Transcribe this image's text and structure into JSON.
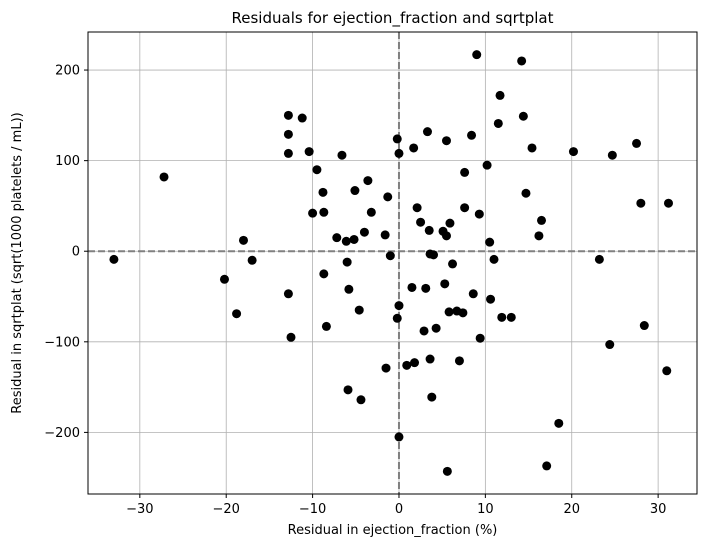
{
  "chart_data": {
    "type": "scatter",
    "title": "Residuals for ejection_fraction and sqrtplat",
    "xlabel": "Residual in ejection_fraction (%)",
    "ylabel": "Residual in sqrtplat (sqrt(1000 platelets / mL))",
    "xlim": [
      -36,
      34.5
    ],
    "ylim": [
      -268,
      242
    ],
    "xticks": [
      -30,
      -20,
      -10,
      0,
      10,
      20,
      30
    ],
    "xtick_labels": [
      "−30",
      "−20",
      "−10",
      "0",
      "10",
      "20",
      "30"
    ],
    "yticks": [
      -200,
      -100,
      0,
      100,
      200
    ],
    "ytick_labels": [
      "−200",
      "−100",
      "0",
      "100",
      "200"
    ],
    "grid": true,
    "reference_lines": {
      "x": 0,
      "y": 0,
      "style": "dashed",
      "color": "#808080"
    },
    "marker_color": "#000000",
    "series": [
      {
        "points": [
          [
            -33,
            -9
          ],
          [
            -27.2,
            82
          ],
          [
            -20.2,
            -31
          ],
          [
            -18.8,
            -69
          ],
          [
            -18,
            12
          ],
          [
            -17,
            -10
          ],
          [
            -12.8,
            150
          ],
          [
            -12.8,
            129
          ],
          [
            -12.8,
            108
          ],
          [
            -12.8,
            -47
          ],
          [
            -12.5,
            -95
          ],
          [
            -11.2,
            147
          ],
          [
            -10.4,
            110
          ],
          [
            -10,
            42
          ],
          [
            -9.5,
            90
          ],
          [
            -8.8,
            65
          ],
          [
            -8.7,
            43
          ],
          [
            -8.7,
            -25
          ],
          [
            -8.4,
            -83
          ],
          [
            -7.2,
            15
          ],
          [
            -6.6,
            106
          ],
          [
            -6.1,
            11
          ],
          [
            -6,
            -12
          ],
          [
            -5.9,
            -153
          ],
          [
            -5.8,
            -42
          ],
          [
            -5.2,
            13
          ],
          [
            -5.1,
            67
          ],
          [
            -4.6,
            -65
          ],
          [
            -4.4,
            -164
          ],
          [
            -4,
            21
          ],
          [
            -3.6,
            78
          ],
          [
            -3.2,
            43
          ],
          [
            -1.6,
            18
          ],
          [
            -1.5,
            -129
          ],
          [
            -1.3,
            60
          ],
          [
            -1,
            -5
          ],
          [
            -0.2,
            124
          ],
          [
            -0.2,
            -74
          ],
          [
            0,
            108
          ],
          [
            0,
            -60
          ],
          [
            0,
            -205
          ],
          [
            0.9,
            -126
          ],
          [
            1.5,
            -40
          ],
          [
            1.7,
            114
          ],
          [
            1.8,
            -123
          ],
          [
            2.1,
            48
          ],
          [
            2.5,
            32
          ],
          [
            2.9,
            -88
          ],
          [
            3.1,
            -41
          ],
          [
            3.3,
            132
          ],
          [
            3.5,
            23
          ],
          [
            3.6,
            -3
          ],
          [
            3.6,
            -119
          ],
          [
            3.8,
            -161
          ],
          [
            4,
            -4
          ],
          [
            4.3,
            -85
          ],
          [
            5.1,
            22
          ],
          [
            5.3,
            -36
          ],
          [
            5.5,
            17
          ],
          [
            5.5,
            122
          ],
          [
            5.6,
            -243
          ],
          [
            5.8,
            -67
          ],
          [
            5.9,
            31
          ],
          [
            6.2,
            -14
          ],
          [
            6.7,
            -66
          ],
          [
            7,
            -121
          ],
          [
            7.4,
            -68
          ],
          [
            7.6,
            48
          ],
          [
            7.6,
            87
          ],
          [
            8.4,
            128
          ],
          [
            8.6,
            -47
          ],
          [
            9,
            217
          ],
          [
            9.3,
            41
          ],
          [
            9.4,
            -96
          ],
          [
            10.2,
            95
          ],
          [
            10.5,
            10
          ],
          [
            10.6,
            -53
          ],
          [
            11,
            -9
          ],
          [
            11.5,
            141
          ],
          [
            11.7,
            172
          ],
          [
            11.9,
            -73
          ],
          [
            13,
            -73
          ],
          [
            14.2,
            210
          ],
          [
            14.4,
            149
          ],
          [
            14.7,
            64
          ],
          [
            15.4,
            114
          ],
          [
            16.2,
            17
          ],
          [
            16.5,
            34
          ],
          [
            17.1,
            -237
          ],
          [
            18.5,
            -190
          ],
          [
            20.2,
            110
          ],
          [
            23.2,
            -9
          ],
          [
            24.4,
            -103
          ],
          [
            24.7,
            106
          ],
          [
            27.5,
            119
          ],
          [
            28,
            53
          ],
          [
            28.4,
            -82
          ],
          [
            31,
            -132
          ],
          [
            31.2,
            53
          ]
        ]
      }
    ]
  }
}
